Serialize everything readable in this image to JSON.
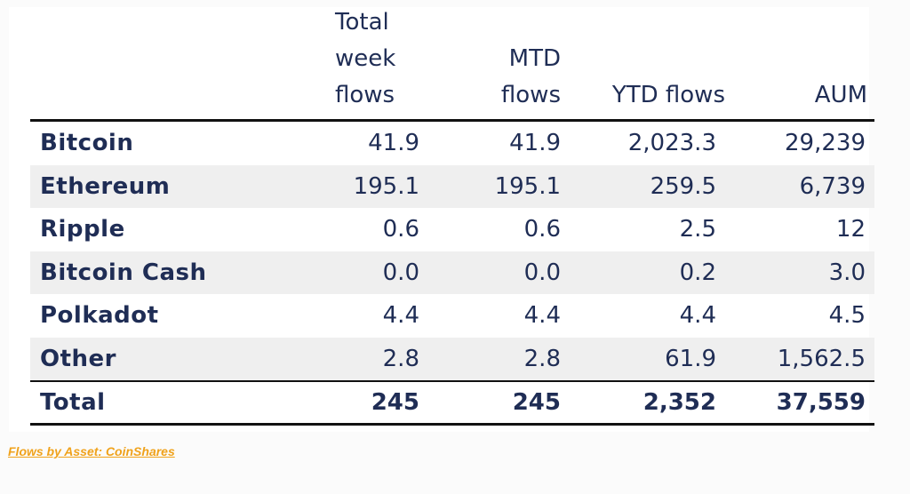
{
  "colors": {
    "text": "#1f2d55",
    "row_shade": "#efefef",
    "rule": "#111111",
    "source_link": "#f0a21a"
  },
  "chart_data": {
    "type": "table",
    "columns": [
      "",
      "Total\nweek\nflows",
      "MTD\nflows",
      "YTD flows",
      "AUM"
    ],
    "rows": [
      {
        "asset": "Bitcoin",
        "week": "41.9",
        "mtd": "41.9",
        "ytd": "2,023.3",
        "aum": "29,239"
      },
      {
        "asset": "Ethereum",
        "week": "195.1",
        "mtd": "195.1",
        "ytd": "259.5",
        "aum": "6,739"
      },
      {
        "asset": "Ripple",
        "week": "0.6",
        "mtd": "0.6",
        "ytd": "2.5",
        "aum": "12"
      },
      {
        "asset": "Bitcoin Cash",
        "week": "0.0",
        "mtd": "0.0",
        "ytd": "0.2",
        "aum": "3.0"
      },
      {
        "asset": "Polkadot",
        "week": "4.4",
        "mtd": "4.4",
        "ytd": "4.4",
        "aum": "4.5"
      },
      {
        "asset": "Other",
        "week": "2.8",
        "mtd": "2.8",
        "ytd": "61.9",
        "aum": "1,562.5"
      }
    ],
    "total": {
      "asset": "Total",
      "week": "245",
      "mtd": "245",
      "ytd": "2,352",
      "aum": "37,559"
    }
  },
  "source_link": "Flows by Asset: CoinShares"
}
